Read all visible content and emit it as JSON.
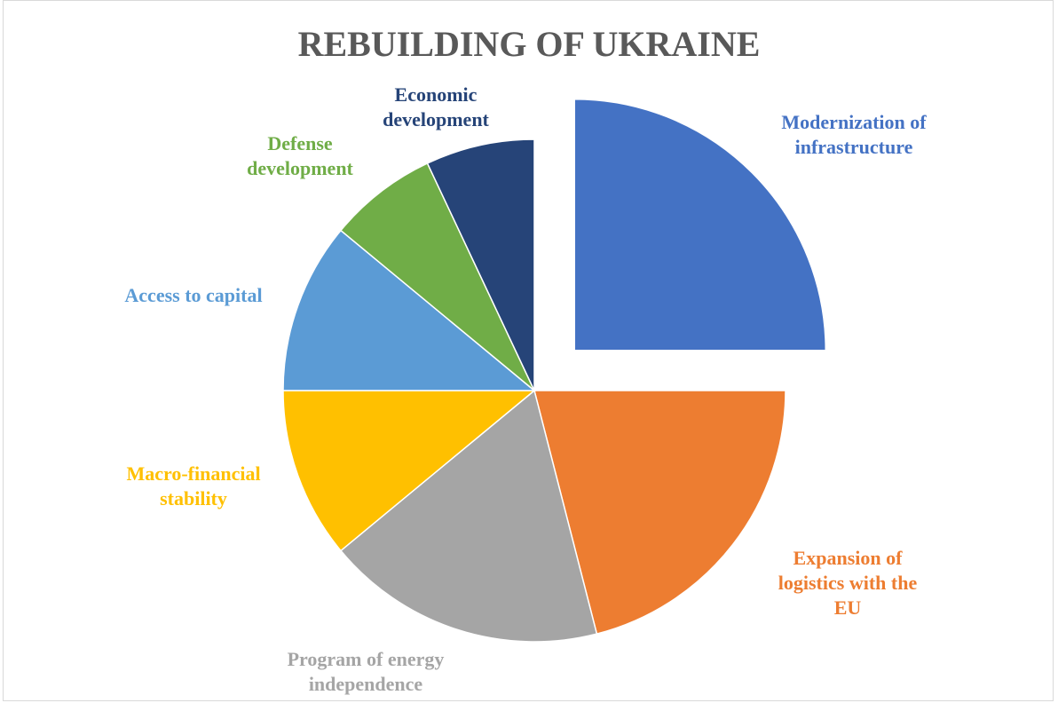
{
  "chart_data": {
    "type": "pie",
    "title": "REBUILDING OF UKRAINE",
    "categories": [
      "Modernization of infrastructure",
      "Expansion of logistics with the EU",
      "Program of energy independence",
      "Macro-financial stability",
      "Access to capital",
      "Defense development",
      "Economic development"
    ],
    "values": [
      25,
      21,
      18,
      11,
      11,
      7,
      7
    ],
    "colors": [
      "#4472c4",
      "#ed7d31",
      "#a5a5a5",
      "#ffc000",
      "#5b9bd5",
      "#70ad47",
      "#264478"
    ]
  }
}
